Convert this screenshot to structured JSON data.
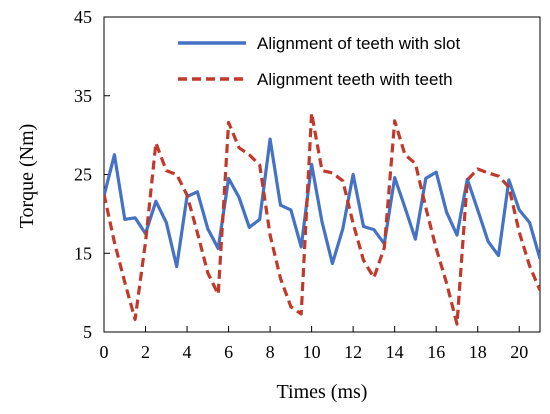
{
  "chart_data": {
    "type": "line",
    "xlabel": "Times (ms)",
    "ylabel": "Torque (Nm)",
    "xlim": [
      0,
      21
    ],
    "ylim": [
      5,
      45
    ],
    "xticks": [
      0,
      2,
      4,
      6,
      8,
      10,
      12,
      14,
      16,
      18,
      20
    ],
    "yticks": [
      5,
      15,
      25,
      35,
      45
    ],
    "grid": false,
    "legend_position": "top-right",
    "series": [
      {
        "name": "Alignment of teeth with slot",
        "color": "#4472c4",
        "style": "solid",
        "x": [
          0,
          0.5,
          1,
          1.5,
          2,
          2.5,
          3,
          3.5,
          4,
          4.5,
          5,
          5.5,
          6,
          6.5,
          7,
          7.5,
          8,
          8.5,
          9,
          9.5,
          10,
          10.5,
          11,
          11.5,
          12,
          12.5,
          13,
          13.5,
          14,
          14.5,
          15,
          15.5,
          16,
          16.5,
          17,
          17.5,
          18,
          18.5,
          19,
          19.5,
          20,
          20.5,
          21
        ],
        "y": [
          22.3,
          27.5,
          19.3,
          19.5,
          17.5,
          21.6,
          18.9,
          13.3,
          22.2,
          22.8,
          18.1,
          15.6,
          24.5,
          22.1,
          18.3,
          19.3,
          29.5,
          21.1,
          20.5,
          15.8,
          26.3,
          19.0,
          13.7,
          18.1,
          25.0,
          18.4,
          18.0,
          16.2,
          24.6,
          20.8,
          16.8,
          24.5,
          25.3,
          20.2,
          17.3,
          24.4,
          20.5,
          16.5,
          14.7,
          24.3,
          20.5,
          18.9,
          14.3
        ]
      },
      {
        "name": "Alignment teeth with teeth",
        "color": "#c0392b",
        "style": "dashed",
        "x": [
          0,
          0.5,
          1,
          1.5,
          2,
          2.5,
          3,
          3.5,
          4,
          4.5,
          5,
          5.5,
          6,
          6.5,
          7,
          7.5,
          8,
          8.5,
          9,
          9.5,
          10,
          10.5,
          11,
          11.5,
          12,
          12.5,
          13,
          13.5,
          14,
          14.5,
          15,
          15.5,
          16,
          16.5,
          17,
          17.5,
          18,
          18.5,
          19,
          19.5,
          20,
          20.5,
          21
        ],
        "y": [
          22.5,
          16.4,
          11.3,
          6.6,
          16.4,
          29.0,
          25.5,
          25.0,
          22.4,
          17.6,
          12.5,
          9.8,
          31.6,
          28.4,
          27.5,
          26.2,
          17.3,
          11.8,
          8.2,
          7.3,
          32.8,
          25.5,
          25.2,
          24.2,
          18.8,
          14.1,
          11.9,
          15.7,
          31.8,
          27.5,
          26.4,
          20.8,
          15.6,
          11.2,
          6.0,
          24.3,
          25.7,
          25.2,
          24.8,
          23.4,
          17.7,
          13.4,
          10.3
        ]
      }
    ]
  }
}
